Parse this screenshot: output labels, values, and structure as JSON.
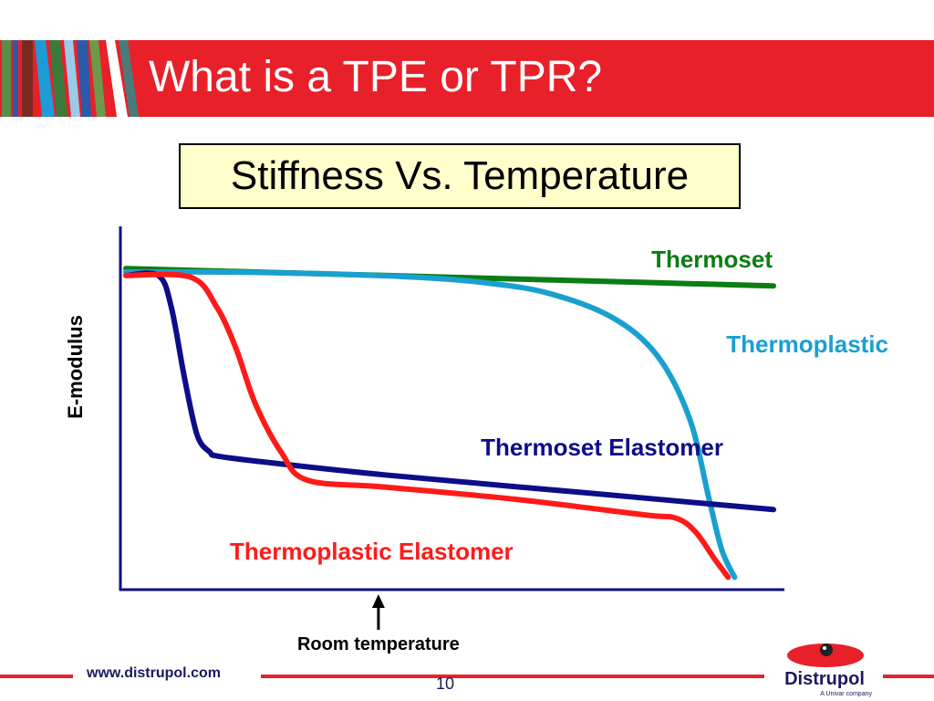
{
  "slide": {
    "title": "What is a TPE or TPR?",
    "subtitle": "Stiffness Vs. Temperature",
    "footer_url": "www.distrupol.com",
    "page_number": "10",
    "logo_name": "Distrupol",
    "logo_tagline": "A Univar company",
    "accent_color": "#e8202a"
  },
  "chart_data": {
    "type": "line",
    "title": "Stiffness Vs. Temperature",
    "ylabel": "E-modulus",
    "xlabel": "",
    "x_range": [
      0,
      100
    ],
    "y_range": [
      0,
      100
    ],
    "grid": false,
    "legend": "inline labels",
    "annotations": [
      {
        "text": "Room temperature",
        "x": 39,
        "marker": "up-arrow"
      }
    ],
    "series": [
      {
        "name": "Thermoset",
        "color": "#0b7d12",
        "x": [
          0,
          20,
          40,
          60,
          80,
          100
        ],
        "y": [
          91,
          90,
          89,
          88,
          87,
          86
        ]
      },
      {
        "name": "Thermoplastic",
        "color": "#1aa0d0",
        "x": [
          0,
          15,
          30,
          45,
          55,
          65,
          75,
          82,
          87,
          90,
          92,
          94
        ],
        "y": [
          90,
          90,
          89.5,
          88.5,
          87,
          84,
          77,
          66,
          48,
          25,
          10,
          2
        ]
      },
      {
        "name": "Thermoset Elastomer",
        "color": "#0d0d8a",
        "x": [
          0,
          5,
          7,
          9,
          11,
          13,
          14,
          20,
          40,
          70,
          100
        ],
        "y": [
          89,
          89,
          80,
          60,
          43,
          38,
          37,
          35.5,
          31.5,
          26.5,
          21.5
        ]
      },
      {
        "name": "Thermoplastic Elastomer",
        "color": "#ff1a1a",
        "x": [
          0,
          10,
          14,
          17,
          20,
          24,
          28,
          40,
          60,
          80,
          85,
          88,
          91,
          93
        ],
        "y": [
          89,
          88.5,
          80,
          68,
          52,
          38,
          30,
          28,
          24.5,
          20,
          19,
          15,
          7,
          2
        ]
      }
    ]
  }
}
